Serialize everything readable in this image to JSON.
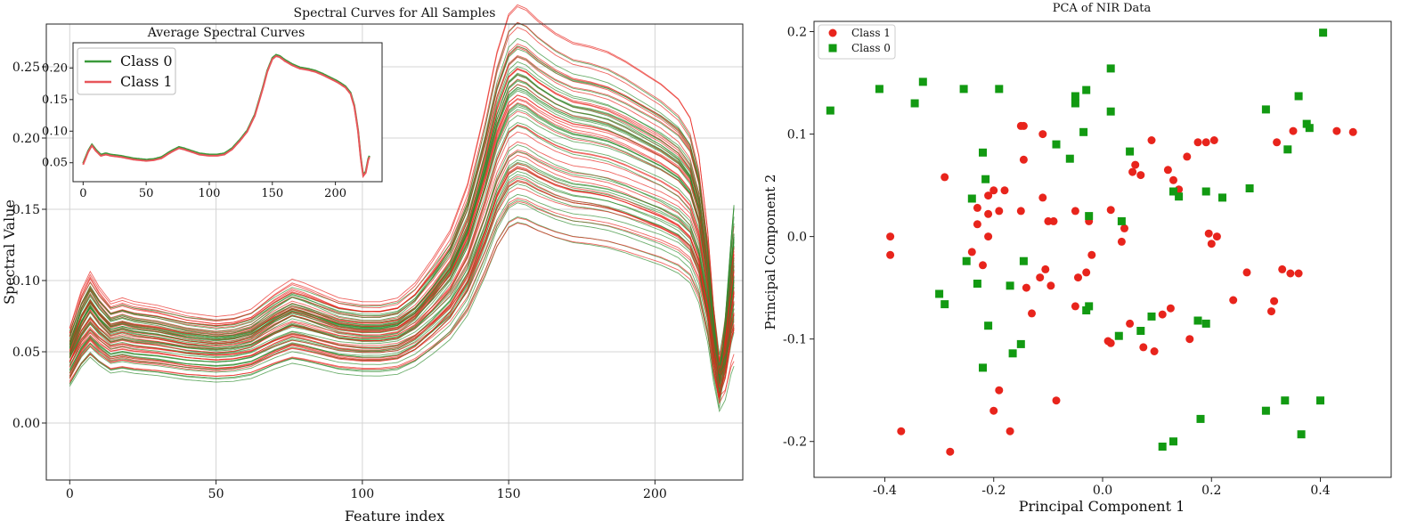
{
  "chart_data": [
    {
      "id": "spectral",
      "type": "line",
      "title": "Spectral Curves for All Samples",
      "xlabel": "Feature index",
      "ylabel": "Spectral Value",
      "xlim": [
        -8,
        230
      ],
      "ylim": [
        -0.04,
        0.28
      ],
      "xticks": [
        "0",
        "50",
        "100",
        "150",
        "200"
      ],
      "yticks": [
        "0.00",
        "0.05",
        "0.10",
        "0.15",
        "0.20",
        "0.25"
      ],
      "grid": true,
      "n_features": 228,
      "mean_profile": {
        "x": [
          0,
          4,
          7,
          10,
          14,
          18,
          22,
          30,
          40,
          50,
          56,
          62,
          70,
          76,
          80,
          86,
          92,
          100,
          106,
          112,
          118,
          124,
          130,
          136,
          142,
          146,
          150,
          153,
          156,
          160,
          166,
          172,
          178,
          184,
          190,
          196,
          202,
          208,
          212,
          215,
          218,
          220,
          222,
          224,
          226,
          227
        ],
        "y": [
          0.048,
          0.068,
          0.078,
          0.07,
          0.062,
          0.064,
          0.062,
          0.06,
          0.056,
          0.054,
          0.055,
          0.058,
          0.068,
          0.074,
          0.072,
          0.068,
          0.064,
          0.062,
          0.062,
          0.064,
          0.072,
          0.085,
          0.1,
          0.125,
          0.165,
          0.195,
          0.215,
          0.22,
          0.218,
          0.212,
          0.205,
          0.2,
          0.198,
          0.195,
          0.19,
          0.184,
          0.178,
          0.17,
          0.16,
          0.14,
          0.1,
          0.06,
          0.03,
          0.035,
          0.055,
          0.06
        ]
      },
      "samples_per_class": 40,
      "series": [
        {
          "name": "Class 0",
          "color": "#2e8b2e"
        },
        {
          "name": "Class 1",
          "color": "#e8241c"
        }
      ]
    },
    {
      "id": "inset",
      "type": "line",
      "title": "Average Spectral Curves",
      "xlim": [
        -8,
        237
      ],
      "ylim": [
        0.02,
        0.24
      ],
      "xticks": [
        "0",
        "50",
        "100",
        "150",
        "200"
      ],
      "yticks": [
        "0.05",
        "0.10",
        "0.15",
        "0.20"
      ],
      "legend": "top-left",
      "series": [
        {
          "name": "Class 0",
          "color": "#3a9a3a"
        },
        {
          "name": "Class 1",
          "color": "#e8555a"
        }
      ]
    },
    {
      "id": "pca",
      "type": "scatter",
      "title": "PCA of NIR Data",
      "xlabel": "Principal Component 1",
      "ylabel": "Principal Component 2",
      "xlim": [
        -0.53,
        0.53
      ],
      "ylim": [
        -0.235,
        0.21
      ],
      "xticks": [
        "-0.4",
        "-0.2",
        "0.0",
        "0.2",
        "0.4"
      ],
      "yticks": [
        "-0.2",
        "-0.1",
        "0.0",
        "0.1",
        "0.2"
      ],
      "legend": "top-left",
      "series": [
        {
          "name": "Class 1",
          "color": "#e8241c",
          "marker": "circle",
          "points": [
            [
              -0.39,
              0.0
            ],
            [
              -0.39,
              -0.018
            ],
            [
              -0.37,
              -0.19
            ],
            [
              -0.29,
              0.058
            ],
            [
              -0.28,
              -0.21
            ],
            [
              -0.24,
              -0.015
            ],
            [
              -0.23,
              0.012
            ],
            [
              -0.23,
              0.028
            ],
            [
              -0.22,
              -0.028
            ],
            [
              -0.21,
              0.04
            ],
            [
              -0.21,
              0.022
            ],
            [
              -0.21,
              0.0
            ],
            [
              -0.2,
              0.045
            ],
            [
              -0.2,
              -0.17
            ],
            [
              -0.19,
              0.025
            ],
            [
              -0.19,
              -0.15
            ],
            [
              -0.18,
              0.045
            ],
            [
              -0.17,
              -0.19
            ],
            [
              -0.15,
              0.025
            ],
            [
              -0.15,
              0.108
            ],
            [
              -0.145,
              0.108
            ],
            [
              -0.145,
              0.075
            ],
            [
              -0.14,
              -0.05
            ],
            [
              -0.13,
              -0.075
            ],
            [
              -0.115,
              -0.04
            ],
            [
              -0.11,
              0.038
            ],
            [
              -0.11,
              0.1
            ],
            [
              -0.105,
              -0.032
            ],
            [
              -0.1,
              0.015
            ],
            [
              -0.095,
              -0.048
            ],
            [
              -0.09,
              0.015
            ],
            [
              -0.085,
              -0.16
            ],
            [
              -0.05,
              0.025
            ],
            [
              -0.05,
              -0.068
            ],
            [
              -0.045,
              -0.04
            ],
            [
              -0.03,
              -0.035
            ],
            [
              -0.025,
              0.015
            ],
            [
              -0.02,
              -0.018
            ],
            [
              0.01,
              -0.102
            ],
            [
              0.015,
              -0.104
            ],
            [
              0.015,
              0.026
            ],
            [
              0.035,
              -0.005
            ],
            [
              0.04,
              0.008
            ],
            [
              0.05,
              -0.085
            ],
            [
              0.055,
              0.063
            ],
            [
              0.06,
              0.07
            ],
            [
              0.07,
              0.06
            ],
            [
              0.075,
              -0.108
            ],
            [
              0.09,
              0.094
            ],
            [
              0.095,
              -0.112
            ],
            [
              0.11,
              -0.076
            ],
            [
              0.12,
              0.065
            ],
            [
              0.125,
              -0.07
            ],
            [
              0.13,
              0.055
            ],
            [
              0.14,
              0.046
            ],
            [
              0.155,
              0.078
            ],
            [
              0.16,
              -0.1
            ],
            [
              0.175,
              0.092
            ],
            [
              0.19,
              0.092
            ],
            [
              0.195,
              0.003
            ],
            [
              0.2,
              -0.007
            ],
            [
              0.205,
              0.094
            ],
            [
              0.21,
              0.0
            ],
            [
              0.24,
              -0.062
            ],
            [
              0.265,
              -0.035
            ],
            [
              0.31,
              -0.073
            ],
            [
              0.315,
              -0.063
            ],
            [
              0.32,
              0.092
            ],
            [
              0.33,
              -0.032
            ],
            [
              0.345,
              -0.036
            ],
            [
              0.35,
              0.103
            ],
            [
              0.36,
              -0.036
            ],
            [
              0.43,
              0.103
            ],
            [
              0.46,
              0.102
            ]
          ]
        },
        {
          "name": "Class 0",
          "color": "#129a12",
          "marker": "square",
          "points": [
            [
              -0.5,
              0.123
            ],
            [
              -0.41,
              0.144
            ],
            [
              -0.345,
              0.13
            ],
            [
              -0.33,
              0.151
            ],
            [
              -0.3,
              -0.056
            ],
            [
              -0.29,
              -0.066
            ],
            [
              -0.255,
              0.144
            ],
            [
              -0.25,
              -0.024
            ],
            [
              -0.24,
              0.037
            ],
            [
              -0.23,
              -0.046
            ],
            [
              -0.22,
              0.082
            ],
            [
              -0.215,
              0.056
            ],
            [
              -0.21,
              -0.087
            ],
            [
              -0.22,
              -0.128
            ],
            [
              -0.19,
              0.144
            ],
            [
              -0.17,
              -0.048
            ],
            [
              -0.165,
              -0.114
            ],
            [
              -0.15,
              -0.105
            ],
            [
              -0.145,
              -0.024
            ],
            [
              -0.085,
              0.09
            ],
            [
              -0.06,
              0.076
            ],
            [
              -0.05,
              0.137
            ],
            [
              -0.05,
              0.13
            ],
            [
              -0.035,
              0.102
            ],
            [
              -0.03,
              0.143
            ],
            [
              -0.03,
              -0.072
            ],
            [
              -0.025,
              -0.068
            ],
            [
              -0.025,
              0.02
            ],
            [
              0.015,
              0.164
            ],
            [
              0.015,
              0.122
            ],
            [
              0.03,
              -0.097
            ],
            [
              0.035,
              0.015
            ],
            [
              0.05,
              0.083
            ],
            [
              0.07,
              -0.092
            ],
            [
              0.09,
              -0.078
            ],
            [
              0.11,
              -0.205
            ],
            [
              0.13,
              0.044
            ],
            [
              0.13,
              -0.2
            ],
            [
              0.14,
              0.039
            ],
            [
              0.175,
              -0.082
            ],
            [
              0.18,
              -0.178
            ],
            [
              0.19,
              -0.085
            ],
            [
              0.19,
              0.044
            ],
            [
              0.22,
              0.038
            ],
            [
              0.27,
              0.047
            ],
            [
              0.3,
              -0.17
            ],
            [
              0.3,
              0.124
            ],
            [
              0.34,
              0.085
            ],
            [
              0.335,
              -0.16
            ],
            [
              0.36,
              0.137
            ],
            [
              0.365,
              -0.193
            ],
            [
              0.375,
              0.11
            ],
            [
              0.38,
              0.106
            ],
            [
              0.4,
              -0.16
            ],
            [
              0.405,
              0.199
            ]
          ]
        }
      ]
    }
  ]
}
